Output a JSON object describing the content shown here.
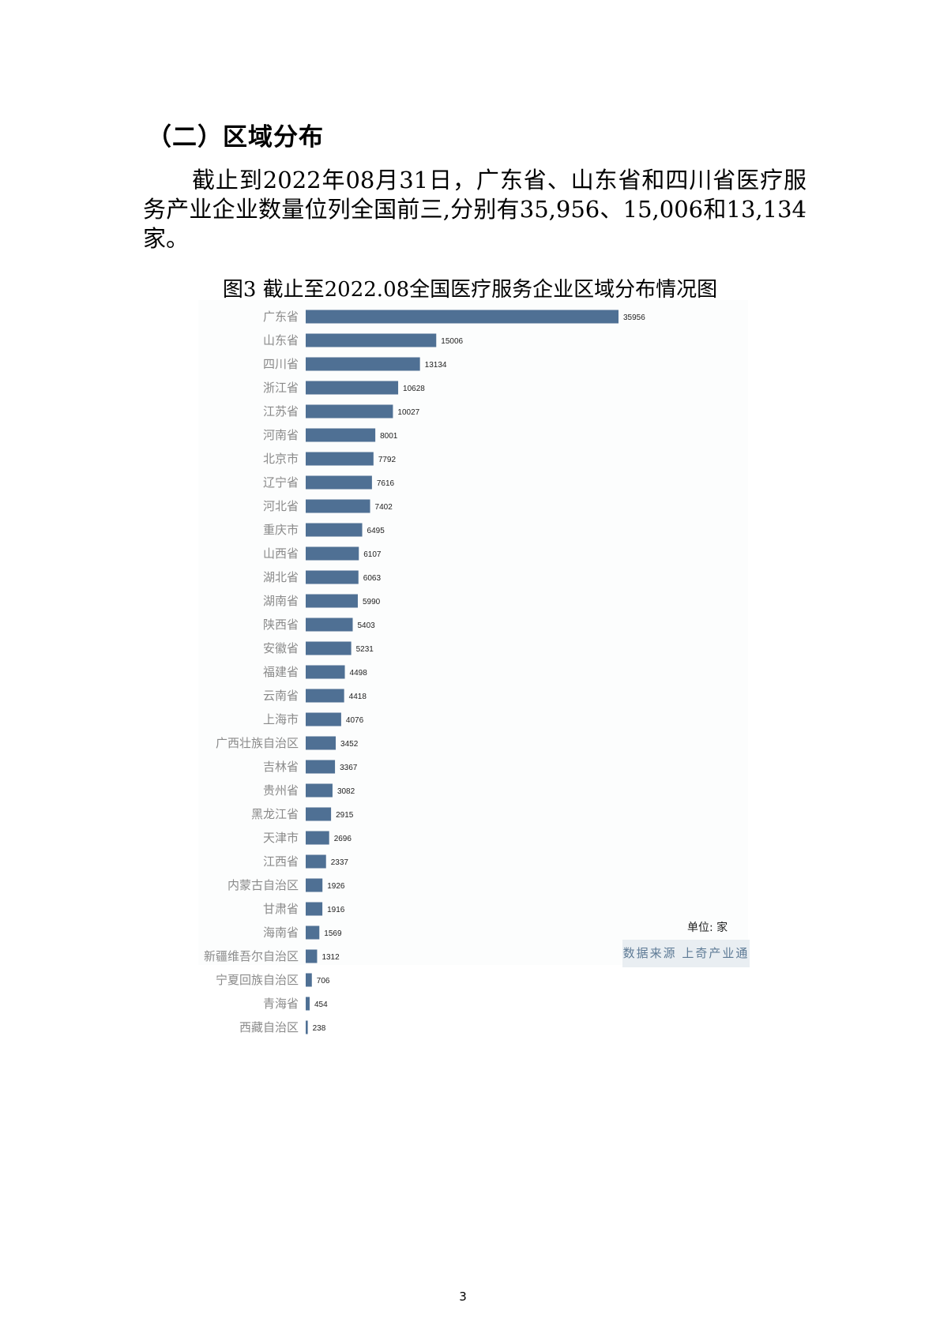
{
  "heading": "（二）区域分布",
  "paragraph": "截止到2022年08月31日，广东省、山东省和四川省医疗服务产业企业数量位列全国前三,分别有35,956、15,006和13,134家。",
  "chart_data": {
    "type": "bar",
    "orientation": "horizontal",
    "title": "图3 截止至2022.08全国医疗服务企业区域分布情况图",
    "categories": [
      "广东省",
      "山东省",
      "四川省",
      "浙江省",
      "江苏省",
      "河南省",
      "北京市",
      "辽宁省",
      "河北省",
      "重庆市",
      "山西省",
      "湖北省",
      "湖南省",
      "陕西省",
      "安徽省",
      "福建省",
      "云南省",
      "上海市",
      "广西壮族自治区",
      "吉林省",
      "贵州省",
      "黑龙江省",
      "天津市",
      "江西省",
      "内蒙古自治区",
      "甘肃省",
      "海南省",
      "新疆维吾尔自治区",
      "宁夏回族自治区",
      "青海省",
      "西藏自治区"
    ],
    "values": [
      35956,
      15006,
      13134,
      10628,
      10027,
      8001,
      7792,
      7616,
      7402,
      6495,
      6107,
      6063,
      5990,
      5403,
      5231,
      4498,
      4418,
      4076,
      3452,
      3367,
      3082,
      2915,
      2696,
      2337,
      1926,
      1916,
      1569,
      1312,
      706,
      454,
      238
    ],
    "unit_label": "单位: 家",
    "source_label": "数据来源 上奇产业通",
    "bar_color": "#4f7094",
    "grid": false
  },
  "page_number": "3"
}
